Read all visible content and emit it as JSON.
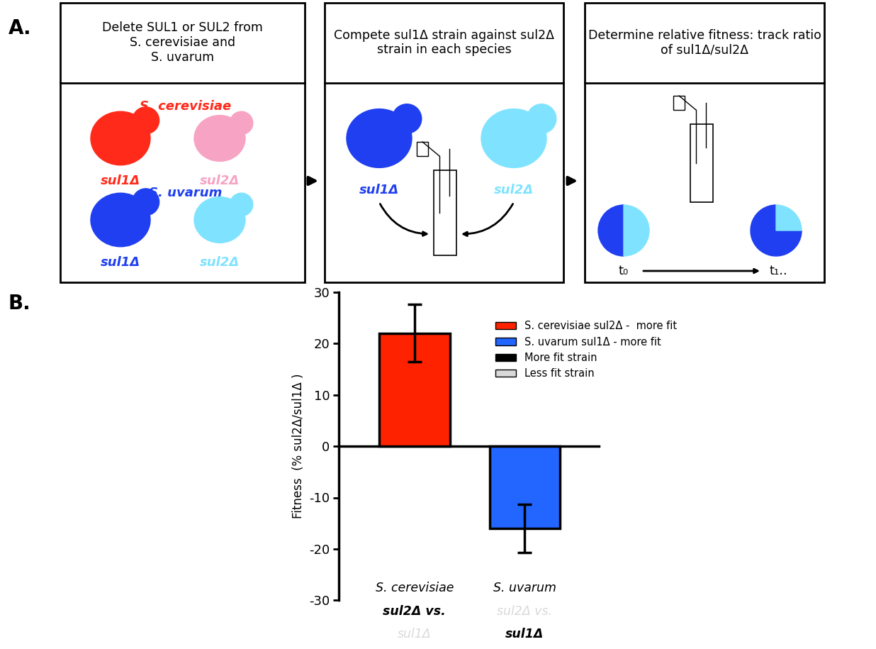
{
  "panel_labels": [
    "A.",
    "B."
  ],
  "panel_a": {
    "steps": [
      {
        "header": "Delete SUL1 or SUL2 from\nS. cerevisiae and\nS. uvarum",
        "species": [
          {
            "name": "S. cerevisiae",
            "color": "#ff2a1a",
            "strains": [
              {
                "label": "sul1Δ",
                "color": "#ff2a1a"
              },
              {
                "label": "sul2Δ",
                "color": "#f7a3c4"
              }
            ]
          },
          {
            "name": "S. uvarum",
            "color": "#1f3ff0",
            "strains": [
              {
                "label": "sul1Δ",
                "color": "#1f3ff0"
              },
              {
                "label": "sul2Δ",
                "color": "#7fe3ff"
              }
            ]
          }
        ]
      },
      {
        "header": "Compete sul1Δ strain against sul2Δ\nstrain in each species",
        "strains": [
          {
            "label": "sul1Δ",
            "color": "#1f3ff0"
          },
          {
            "label": "sul2Δ",
            "color": "#7fe3ff"
          }
        ]
      },
      {
        "header": "Determine relative fitness: track ratio\nof sul1Δ/sul2Δ",
        "times": [
          "t₀",
          "t₁.."
        ]
      }
    ]
  },
  "chart_data": {
    "type": "bar",
    "categories": [
      "S. cerevisiae\nsul2Δ vs.\nsul1Δ",
      "S. uvarum\nsul2Δ vs.\nsul1Δ"
    ],
    "y_label": "Fitness  (% sul2Δ/sul1Δ )",
    "ylim": [
      -30,
      30
    ],
    "yticks": [
      -30,
      -20,
      -10,
      0,
      10,
      20,
      30
    ],
    "series": [
      {
        "name": "S. cerevisiae sul2Δ -  more fit",
        "color": "#ff2200",
        "values": [
          22,
          null
        ],
        "errors": [
          5.6,
          null
        ]
      },
      {
        "name": "S. uvarum sul1Δ - more fit",
        "color": "#2266ff",
        "values": [
          null,
          -16
        ],
        "errors": [
          null,
          4.7
        ]
      }
    ],
    "legend": "upper left",
    "legend_extra": [
      {
        "name": "More fit strain",
        "color": "#000000"
      },
      {
        "name": "Less fit strain",
        "color": "#d9d9d9"
      }
    ]
  }
}
